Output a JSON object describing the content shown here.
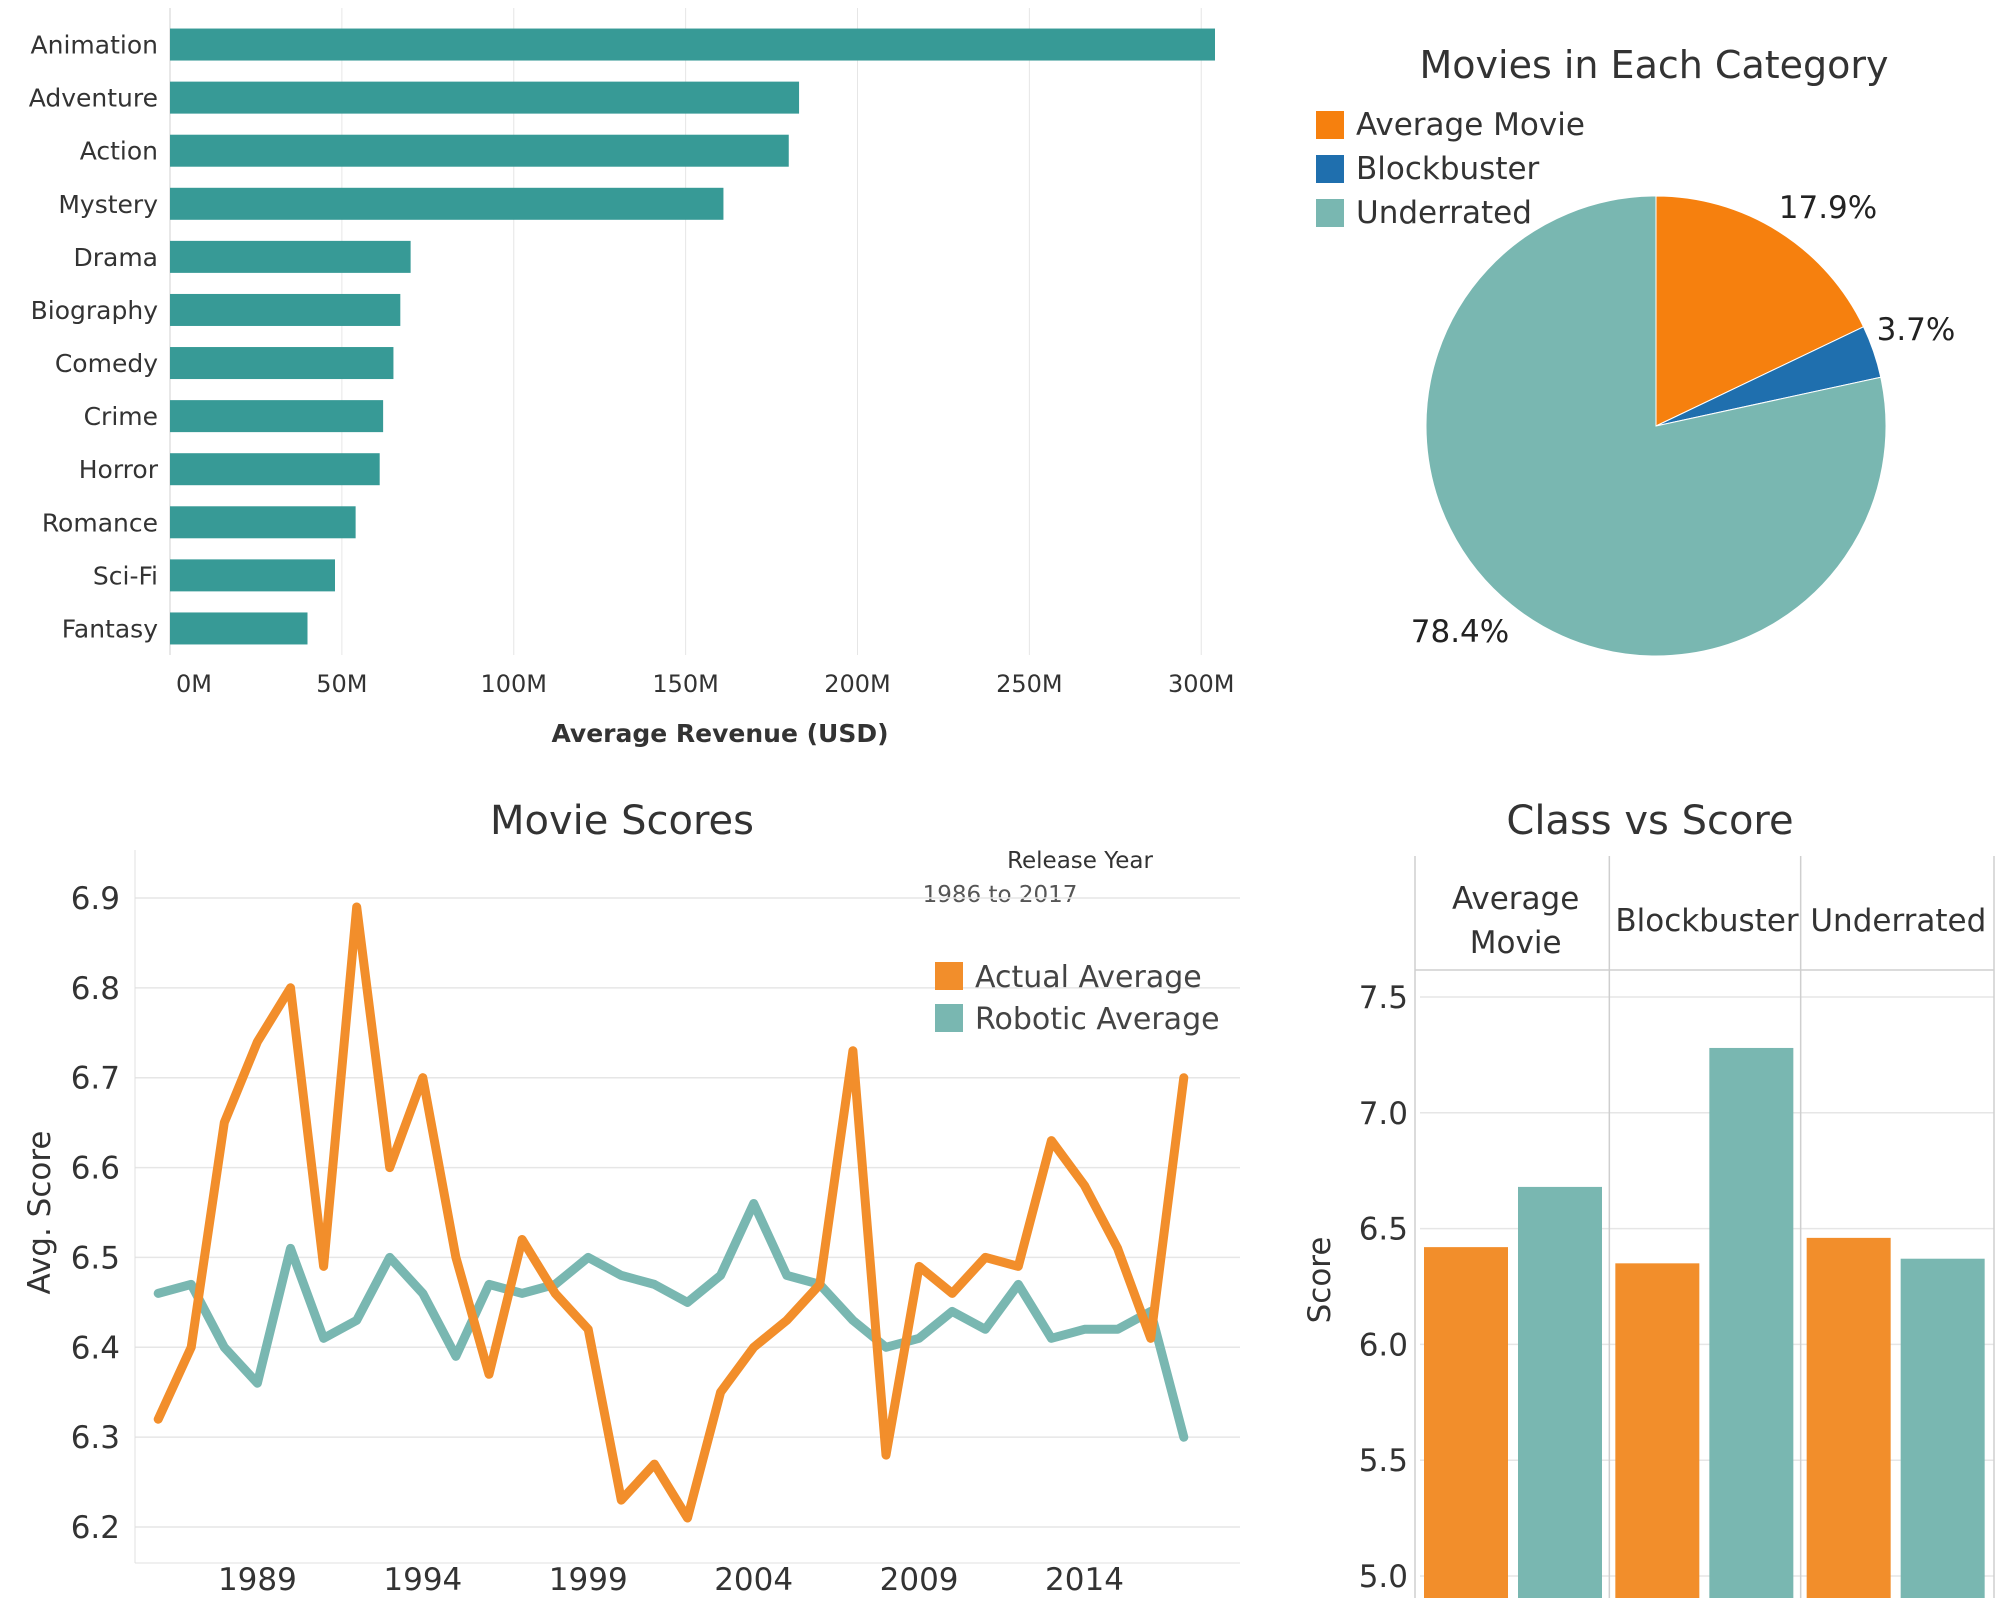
{
  "colors": {
    "teal_bar": "#379a96",
    "orange": "#f28e2b",
    "pie_orange": "#f6800e",
    "pie_blue": "#1f6fae",
    "teal_light": "#79b7b1",
    "grid": "#e6e6e6",
    "text": "#333333"
  },
  "chart_data": [
    {
      "type": "bar",
      "orientation": "horizontal",
      "title": "",
      "categories": [
        "Animation",
        "Adventure",
        "Action",
        "Mystery",
        "Drama",
        "Biography",
        "Comedy",
        "Crime",
        "Horror",
        "Romance",
        "Sci-Fi",
        "Fantasy"
      ],
      "values": [
        304,
        183,
        180,
        161,
        70,
        67,
        65,
        62,
        61,
        54,
        48,
        40
      ],
      "unit": "M",
      "xlabel": "Average Revenue (USD)",
      "ylabel": "",
      "xlim": [
        0,
        320
      ],
      "xticks": [
        "0M",
        "50M",
        "100M",
        "150M",
        "200M",
        "250M",
        "300M"
      ],
      "xtick_values": [
        0,
        50,
        100,
        150,
        200,
        250,
        300
      ],
      "grid": "vertical"
    },
    {
      "type": "pie",
      "title": "Movies in Each Category",
      "legend": [
        "Average Movie",
        "Blockbuster",
        "Underrated"
      ],
      "labels": [
        "Average Movie",
        "Blockbuster",
        "Underrated"
      ],
      "values": [
        17.9,
        3.7,
        78.4
      ],
      "value_labels": [
        "17.9%",
        "3.7%",
        "78.4%"
      ],
      "legend_position": "top-left"
    },
    {
      "type": "line",
      "title": "Movie Scores",
      "filter_title": "Release Year",
      "filter_range": "1986 to 2017",
      "ylabel": "Avg. Score",
      "xlabel": "",
      "ylim": [
        6.18,
        6.92
      ],
      "yticks": [
        "6.2",
        "6.3",
        "6.4",
        "6.5",
        "6.6",
        "6.7",
        "6.8",
        "6.9"
      ],
      "ytick_values": [
        6.2,
        6.3,
        6.4,
        6.5,
        6.6,
        6.7,
        6.8,
        6.9
      ],
      "xlim": [
        1985.3,
        2018.7
      ],
      "xticks": [
        "1989",
        "1994",
        "1999",
        "2004",
        "2009",
        "2014"
      ],
      "xtick_values": [
        1989,
        1994,
        1999,
        2004,
        2009,
        2014
      ],
      "legend_position": "top-right",
      "x": [
        1986,
        1987,
        1988,
        1989,
        1990,
        1991,
        1992,
        1993,
        1994,
        1995,
        1996,
        1997,
        1998,
        1999,
        2000,
        2001,
        2002,
        2003,
        2004,
        2005,
        2006,
        2007,
        2008,
        2009,
        2010,
        2011,
        2012,
        2013,
        2014,
        2015,
        2016,
        2017
      ],
      "series": [
        {
          "name": "Actual Average",
          "values": [
            6.32,
            6.4,
            6.65,
            6.74,
            6.8,
            6.49,
            6.89,
            6.6,
            6.7,
            6.5,
            6.37,
            6.52,
            6.46,
            6.42,
            6.23,
            6.27,
            6.21,
            6.35,
            6.4,
            6.43,
            6.47,
            6.73,
            6.28,
            6.49,
            6.46,
            6.5,
            6.49,
            6.63,
            6.58,
            6.51,
            6.41,
            6.7
          ]
        },
        {
          "name": "Robotic Average",
          "values": [
            6.46,
            6.47,
            6.4,
            6.36,
            6.51,
            6.41,
            6.43,
            6.5,
            6.46,
            6.39,
            6.47,
            6.46,
            6.47,
            6.5,
            6.48,
            6.47,
            6.45,
            6.48,
            6.56,
            6.48,
            6.47,
            6.43,
            6.4,
            6.41,
            6.44,
            6.42,
            6.47,
            6.41,
            6.42,
            6.42,
            6.44,
            6.3
          ]
        }
      ],
      "grid": "horizontal"
    },
    {
      "type": "bar",
      "title": "Class vs Score",
      "ylabel": "Score",
      "ylim": [
        5.0,
        7.7
      ],
      "yticks": [
        "5.0",
        "5.5",
        "6.0",
        "6.5",
        "7.0",
        "7.5"
      ],
      "ytick_values": [
        5.0,
        5.5,
        6.0,
        6.5,
        7.0,
        7.5
      ],
      "groups": [
        {
          "label_lines": [
            "Average",
            "Movie"
          ],
          "values": [
            6.42,
            6.68
          ]
        },
        {
          "label_lines": [
            "Blockbuster"
          ],
          "values": [
            6.35,
            7.28
          ]
        },
        {
          "label_lines": [
            "Underrated"
          ],
          "values": [
            6.46,
            6.37
          ]
        }
      ],
      "series_colors": [
        "#f28e2b",
        "#79b7b1"
      ]
    }
  ]
}
